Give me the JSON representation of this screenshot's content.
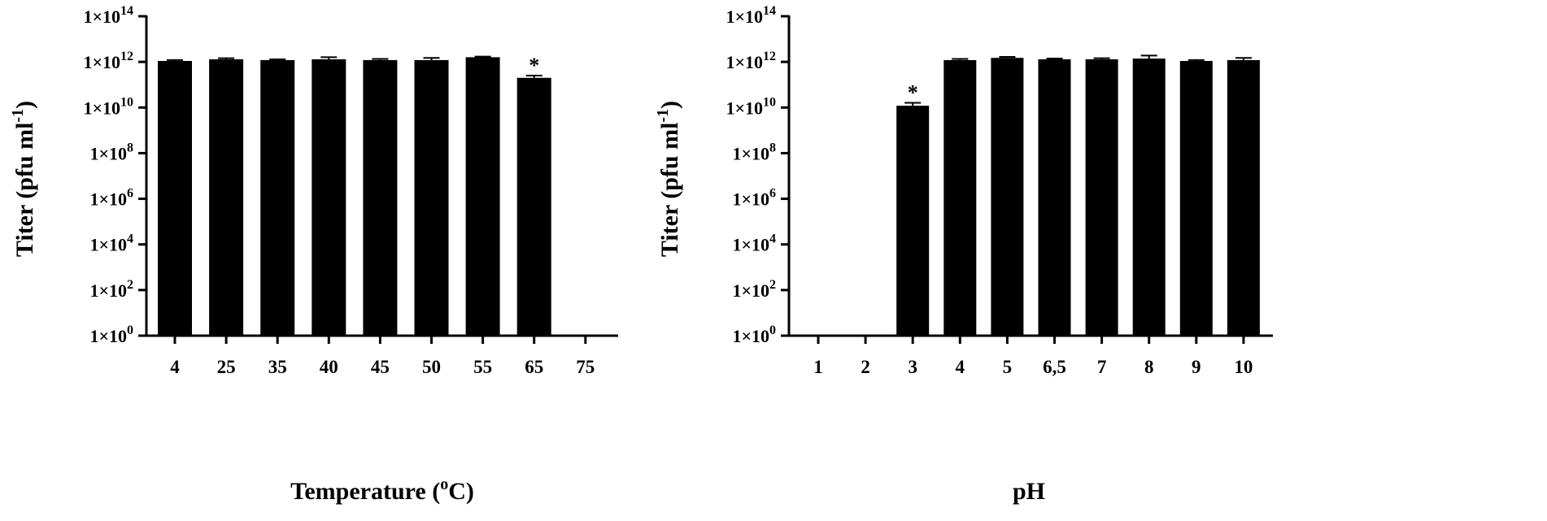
{
  "chart_data": [
    {
      "type": "bar",
      "xlabel_text": "Temperature (",
      "xlabel_sup": "o",
      "xlabel_tail": "C)",
      "ylabel_text": "Titer (pfu ml",
      "ylabel_sup": "-1",
      "ylabel_tail": ")",
      "yscale": "log",
      "ylim": [
        1,
        100000000000000.0
      ],
      "y_ticks": [
        {
          "value": 1,
          "base": "1×10",
          "exp": "0"
        },
        {
          "value": 100.0,
          "base": "1×10",
          "exp": "2"
        },
        {
          "value": 10000.0,
          "base": "1×10",
          "exp": "4"
        },
        {
          "value": 1000000.0,
          "base": "1×10",
          "exp": "6"
        },
        {
          "value": 100000000.0,
          "base": "1×10",
          "exp": "8"
        },
        {
          "value": 10000000000.0,
          "base": "1×10",
          "exp": "10"
        },
        {
          "value": 1000000000000.0,
          "base": "1×10",
          "exp": "12"
        },
        {
          "value": 100000000000000.0,
          "base": "1×10",
          "exp": "14"
        }
      ],
      "categories": [
        "4",
        "25",
        "35",
        "40",
        "45",
        "50",
        "55",
        "65",
        "75"
      ],
      "values": [
        1100000000000.0,
        1300000000000.0,
        1200000000000.0,
        1300000000000.0,
        1200000000000.0,
        1200000000000.0,
        1600000000000.0,
        200000000000.0,
        null
      ],
      "errors": [
        100000000000.0,
        150000000000.0,
        100000000000.0,
        300000000000.0,
        150000000000.0,
        300000000000.0,
        100000000000.0,
        50000000000.0,
        null
      ],
      "significance": [
        "",
        "",
        "",
        "",
        "",
        "",
        "",
        "*",
        ""
      ],
      "bar_color": "#000000"
    },
    {
      "type": "bar",
      "xlabel_text": "pH",
      "xlabel_sup": "",
      "xlabel_tail": "",
      "ylabel_text": "Titer (pfu ml",
      "ylabel_sup": "-1",
      "ylabel_tail": ")",
      "yscale": "log",
      "ylim": [
        1,
        100000000000000.0
      ],
      "y_ticks": [
        {
          "value": 1,
          "base": "1×10",
          "exp": "0"
        },
        {
          "value": 100.0,
          "base": "1×10",
          "exp": "2"
        },
        {
          "value": 10000.0,
          "base": "1×10",
          "exp": "4"
        },
        {
          "value": 1000000.0,
          "base": "1×10",
          "exp": "6"
        },
        {
          "value": 100000000.0,
          "base": "1×10",
          "exp": "8"
        },
        {
          "value": 10000000000.0,
          "base": "1×10",
          "exp": "10"
        },
        {
          "value": 1000000000000.0,
          "base": "1×10",
          "exp": "12"
        },
        {
          "value": 100000000000000.0,
          "base": "1×10",
          "exp": "14"
        }
      ],
      "categories": [
        "1",
        "2",
        "3",
        "4",
        "5",
        "6,5",
        "7",
        "8",
        "9",
        "10"
      ],
      "values": [
        null,
        null,
        12000000000.0,
        1200000000000.0,
        1500000000000.0,
        1300000000000.0,
        1300000000000.0,
        1400000000000.0,
        1100000000000.0,
        1200000000000.0
      ],
      "errors": [
        null,
        null,
        4000000000.0,
        150000000000.0,
        150000000000.0,
        100000000000.0,
        150000000000.0,
        500000000000.0,
        100000000000.0,
        300000000000.0
      ],
      "significance": [
        "",
        "",
        "*",
        "",
        "",
        "",
        "",
        "",
        "",
        ""
      ],
      "bar_color": "#000000"
    }
  ]
}
